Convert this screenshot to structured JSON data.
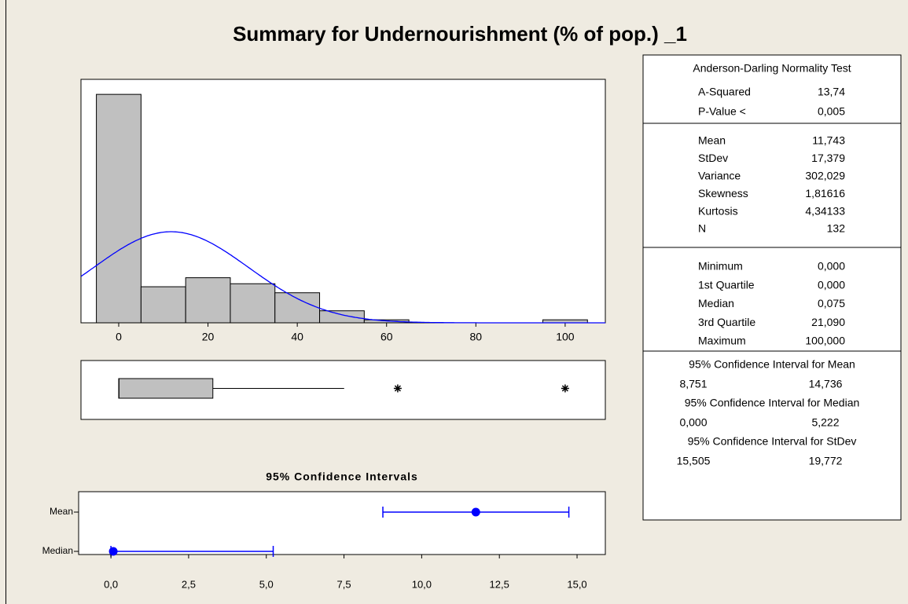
{
  "title": "Summary for Undernourishment (% of pop.) _1",
  "chart_data": [
    {
      "type": "histogram",
      "bins": [
        -5,
        5,
        15,
        25,
        35,
        45,
        55,
        65,
        75,
        85,
        95,
        105
      ],
      "values": [
        76,
        12,
        15,
        13,
        10,
        4,
        1,
        0,
        0,
        0,
        1
      ],
      "color": "#c0c0c0",
      "curve_color": "#0000ff",
      "xlim": [
        -8.45,
        109
      ],
      "xticks": [
        0,
        20,
        40,
        60,
        80,
        100
      ],
      "ylim": [
        0,
        81
      ]
    },
    {
      "type": "box",
      "whislo": 0,
      "q1": 0,
      "median": 0.075,
      "q3": 21.09,
      "whishi": 50.5,
      "outliers": [
        62.5,
        100
      ],
      "color": "#c0c0c0",
      "xlim": [
        -8.45,
        109
      ]
    },
    {
      "type": "interval",
      "title": "95% Confidence Intervals",
      "categories": [
        "Mean",
        "Median"
      ],
      "estimates": [
        11.743,
        0.075
      ],
      "lows": [
        8.751,
        0
      ],
      "highs": [
        14.736,
        5.222
      ],
      "color": "#0000ff",
      "xlim": [
        -1.04,
        15.91
      ],
      "xticks": [
        {
          "value": 0,
          "label": "0,0"
        },
        {
          "value": 2.5,
          "label": "2,5"
        },
        {
          "value": 5,
          "label": "5,0"
        },
        {
          "value": 7.5,
          "label": "7,5"
        },
        {
          "value": 10,
          "label": "10,0"
        },
        {
          "value": 12.5,
          "label": "12,5"
        },
        {
          "value": 15,
          "label": "15,0"
        }
      ]
    }
  ],
  "table": {
    "normality": {
      "title": "Anderson-Darling Normality Test",
      "rows": [
        [
          "A-Squared",
          "13,74"
        ],
        [
          "P-Value <",
          "0,005"
        ]
      ]
    },
    "moments": [
      [
        "Mean",
        "11,743"
      ],
      [
        "StDev",
        "17,379"
      ],
      [
        "Variance",
        "302,029"
      ],
      [
        "Skewness",
        "1,81616"
      ],
      [
        "Kurtosis",
        "4,34133"
      ],
      [
        "N",
        "132"
      ]
    ],
    "quantiles": [
      [
        "Minimum",
        "0,000"
      ],
      [
        "1st Quartile",
        "0,000"
      ],
      [
        "Median",
        "0,075"
      ],
      [
        "3rd Quartile",
        "21,090"
      ],
      [
        "Maximum",
        "100,000"
      ]
    ],
    "intervals": [
      {
        "title": "95% Confidence Interval for Mean",
        "low": "8,751",
        "high": "14,736"
      },
      {
        "title": "95% Confidence Interval for Median",
        "low": "0,000",
        "high": "5,222"
      },
      {
        "title": "95% Confidence Interval for StDev",
        "low": "15,505",
        "high": "19,772"
      }
    ]
  }
}
